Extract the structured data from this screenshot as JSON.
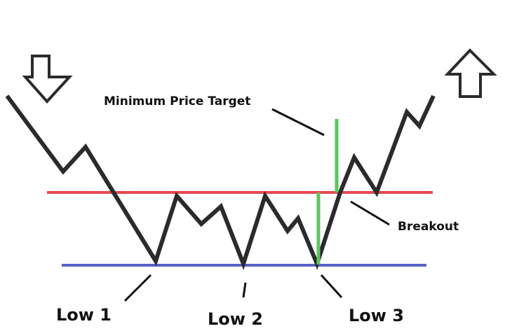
{
  "labels": {
    "target": "Minimum Price Target",
    "breakout": "Breakout",
    "low1": "Low 1",
    "low2": "Low 2",
    "low3": "Low 3"
  }
}
